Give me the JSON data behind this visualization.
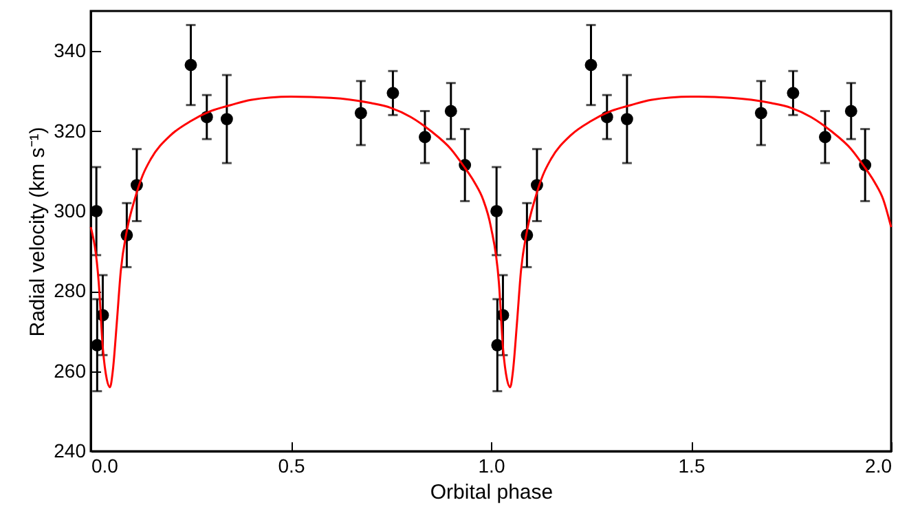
{
  "chart_data": {
    "type": "scatter",
    "xlabel": "Orbital phase",
    "ylabel": "Radial velocity (km s⁻¹)",
    "xlim": [
      0,
      2
    ],
    "ylim": [
      240,
      350
    ],
    "xticks": [
      {
        "value": 0,
        "label": "0.0"
      },
      {
        "value": 0.5,
        "label": "0.5"
      },
      {
        "value": 1,
        "label": "1.0"
      },
      {
        "value": 1.5,
        "label": "1.5"
      },
      {
        "value": 2,
        "label": "2.0"
      }
    ],
    "yticks": [
      240,
      260,
      280,
      300,
      320,
      340
    ],
    "grid": false,
    "series": [
      {
        "marker": "circle",
        "color": "#000000",
        "x": [
          0.014,
          0.016,
          0.03,
          0.09,
          0.115,
          0.25,
          0.29,
          0.34,
          0.675,
          0.755,
          0.835,
          0.9,
          0.935,
          1.014,
          1.016,
          1.03,
          1.09,
          1.115,
          1.25,
          1.29,
          1.34,
          1.675,
          1.755,
          1.835,
          1.9,
          1.935
        ],
        "values": [
          300,
          266.5,
          274,
          294,
          306.5,
          336.5,
          323.5,
          323,
          324.5,
          329.5,
          318.5,
          325,
          311.5,
          300,
          266.5,
          274,
          294,
          306.5,
          336.5,
          323.5,
          323,
          324.5,
          329.5,
          318.5,
          325,
          311.5
        ],
        "errors": [
          11,
          11.5,
          10,
          8,
          9,
          10,
          5.5,
          11,
          8,
          5.5,
          6.5,
          7,
          9,
          11,
          11.5,
          10,
          8,
          9,
          10,
          5.5,
          11,
          8,
          5.5,
          6.5,
          7,
          9
        ]
      },
      {
        "type": "line",
        "color": "#ff0000",
        "x": [
          0,
          0.02,
          0.03,
          0.04,
          0.048,
          0.055,
          0.065,
          0.075,
          0.09,
          0.11,
          0.13,
          0.15,
          0.2,
          0.25,
          0.3,
          0.35,
          0.4,
          0.5,
          0.6,
          0.7,
          0.75,
          0.8,
          0.85,
          0.9,
          0.93,
          0.96,
          0.98,
          1,
          1.02,
          1.03,
          1.04,
          1.048,
          1.055,
          1.065,
          1.075,
          1.09,
          1.11,
          1.13,
          1.15,
          1.2,
          1.25,
          1.3,
          1.35,
          1.4,
          1.5,
          1.6,
          1.7,
          1.75,
          1.8,
          1.85,
          1.9,
          1.93,
          1.96,
          1.98,
          2
        ],
        "values": [
          296,
          282,
          266,
          258,
          256,
          260,
          272,
          285,
          295,
          303,
          309,
          313,
          319,
          322.5,
          325,
          326.5,
          327.8,
          328.6,
          328.3,
          327,
          325.8,
          323.5,
          320,
          315.5,
          311.5,
          307,
          303,
          296,
          282,
          266,
          258,
          256,
          260,
          272,
          285,
          295,
          303,
          309,
          313,
          319,
          322.5,
          325,
          326.5,
          327.8,
          328.6,
          328.3,
          327,
          325.8,
          323.5,
          320,
          315.5,
          311.5,
          307,
          303,
          296
        ]
      }
    ]
  }
}
